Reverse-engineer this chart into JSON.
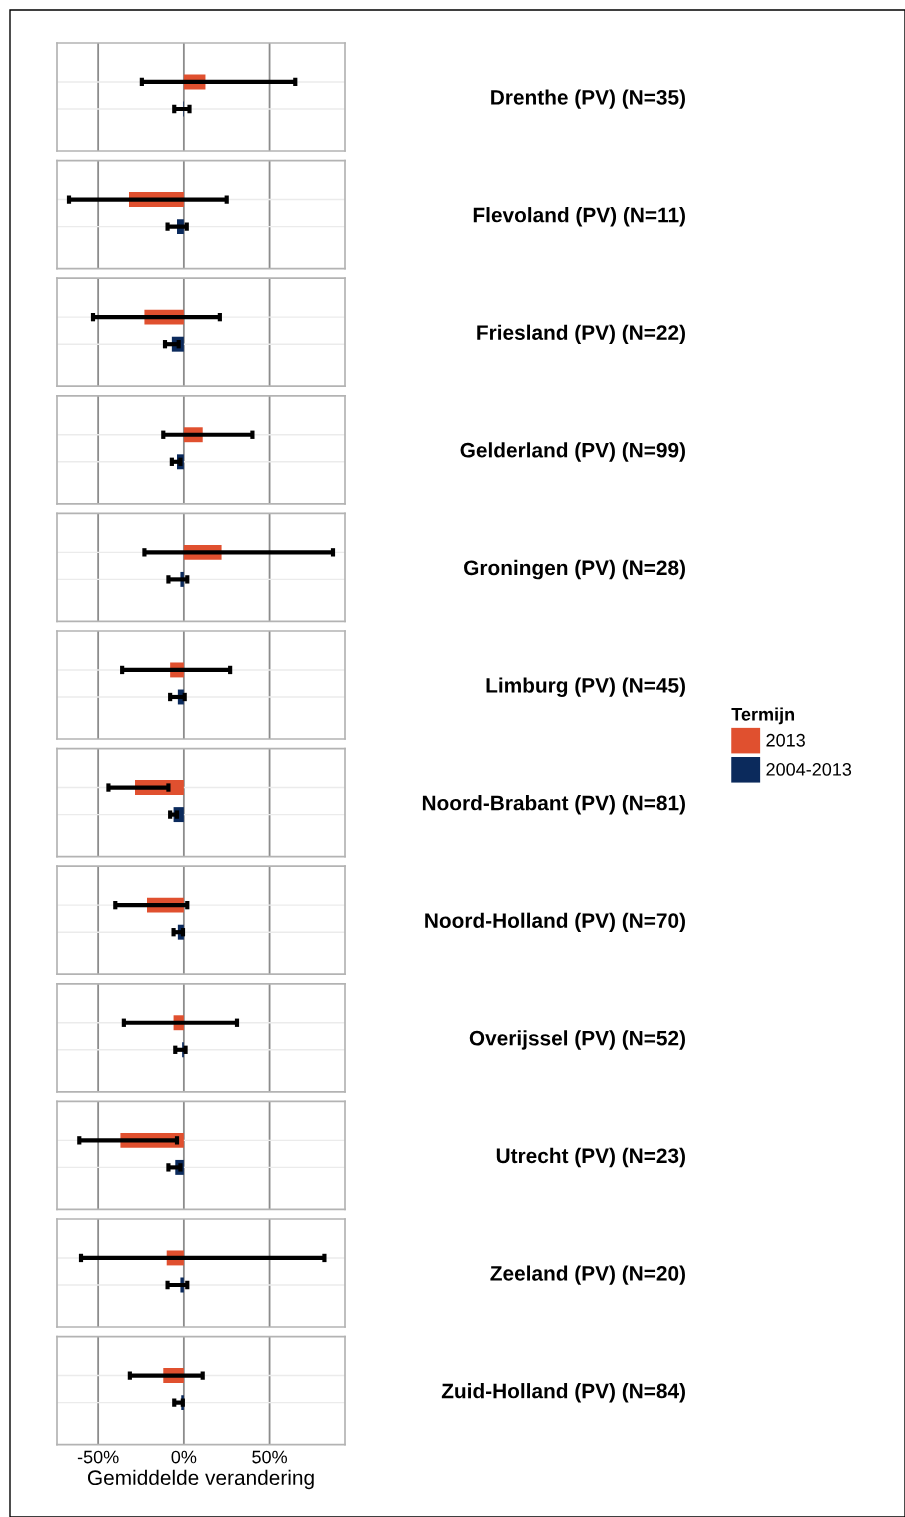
{
  "chart_data": {
    "type": "bar",
    "orientation": "horizontal",
    "xlabel": "Gemiddelde verandering",
    "legend": "right",
    "legend_title": "Termijn",
    "grid": true,
    "categories": [
      "Drenthe (PV) (N=35)",
      "Flevoland (PV) (N=11)",
      "Friesland (PV) (N=22)",
      "Gelderland (PV) (N=99)",
      "Groningen (PV) (N=28)",
      "Limburg (PV) (N=45)",
      "Noord-Brabant (PV) (N=81)",
      "Noord-Holland (PV) (N=70)",
      "Overijssel (PV) (N=52)",
      "Utrecht (PV) (N=23)",
      "Zeeland (PV) (N=20)",
      "Zuid-Holland (PV) (N=84)"
    ],
    "xlim": [
      -74,
      94
    ],
    "xticks": [
      {
        "value": -50,
        "label": "-50%"
      },
      {
        "value": 0,
        "label": "0%"
      },
      {
        "value": 50,
        "label": "50%"
      }
    ],
    "series": [
      {
        "name": "2013",
        "color": "#e0502f",
        "values": [
          12.6,
          -32,
          -23,
          11,
          22,
          -8,
          -28.5,
          -21.5,
          -6,
          -37,
          -10,
          -12
        ],
        "errors": [
          [
            -24.5,
            65
          ],
          [
            -67,
            25
          ],
          [
            -53,
            21
          ],
          [
            -12,
            40
          ],
          [
            -23,
            87
          ],
          [
            -36,
            27
          ],
          [
            -44,
            -9
          ],
          [
            -40,
            2
          ],
          [
            -35,
            31
          ],
          [
            -61,
            -4
          ],
          [
            -60,
            82
          ],
          [
            -31.5,
            11
          ]
        ]
      },
      {
        "name": "2004-2013",
        "color": "#0b2a5c",
        "values": [
          -0.4,
          -4,
          -7,
          -4,
          -2,
          -3.5,
          -6,
          -3.5,
          -1,
          -5,
          -2,
          -1.5
        ],
        "errors": [
          [
            -5.6,
            3.3
          ],
          [
            -9.5,
            1.7
          ],
          [
            -11,
            -3
          ],
          [
            -7,
            -2
          ],
          [
            -9,
            2
          ],
          [
            -8,
            0.5
          ],
          [
            -8,
            -4
          ],
          [
            -6,
            -0.5
          ],
          [
            -5,
            1
          ],
          [
            -9,
            -2
          ],
          [
            -9.5,
            2
          ],
          [
            -5.6,
            -0.6
          ]
        ]
      }
    ]
  }
}
